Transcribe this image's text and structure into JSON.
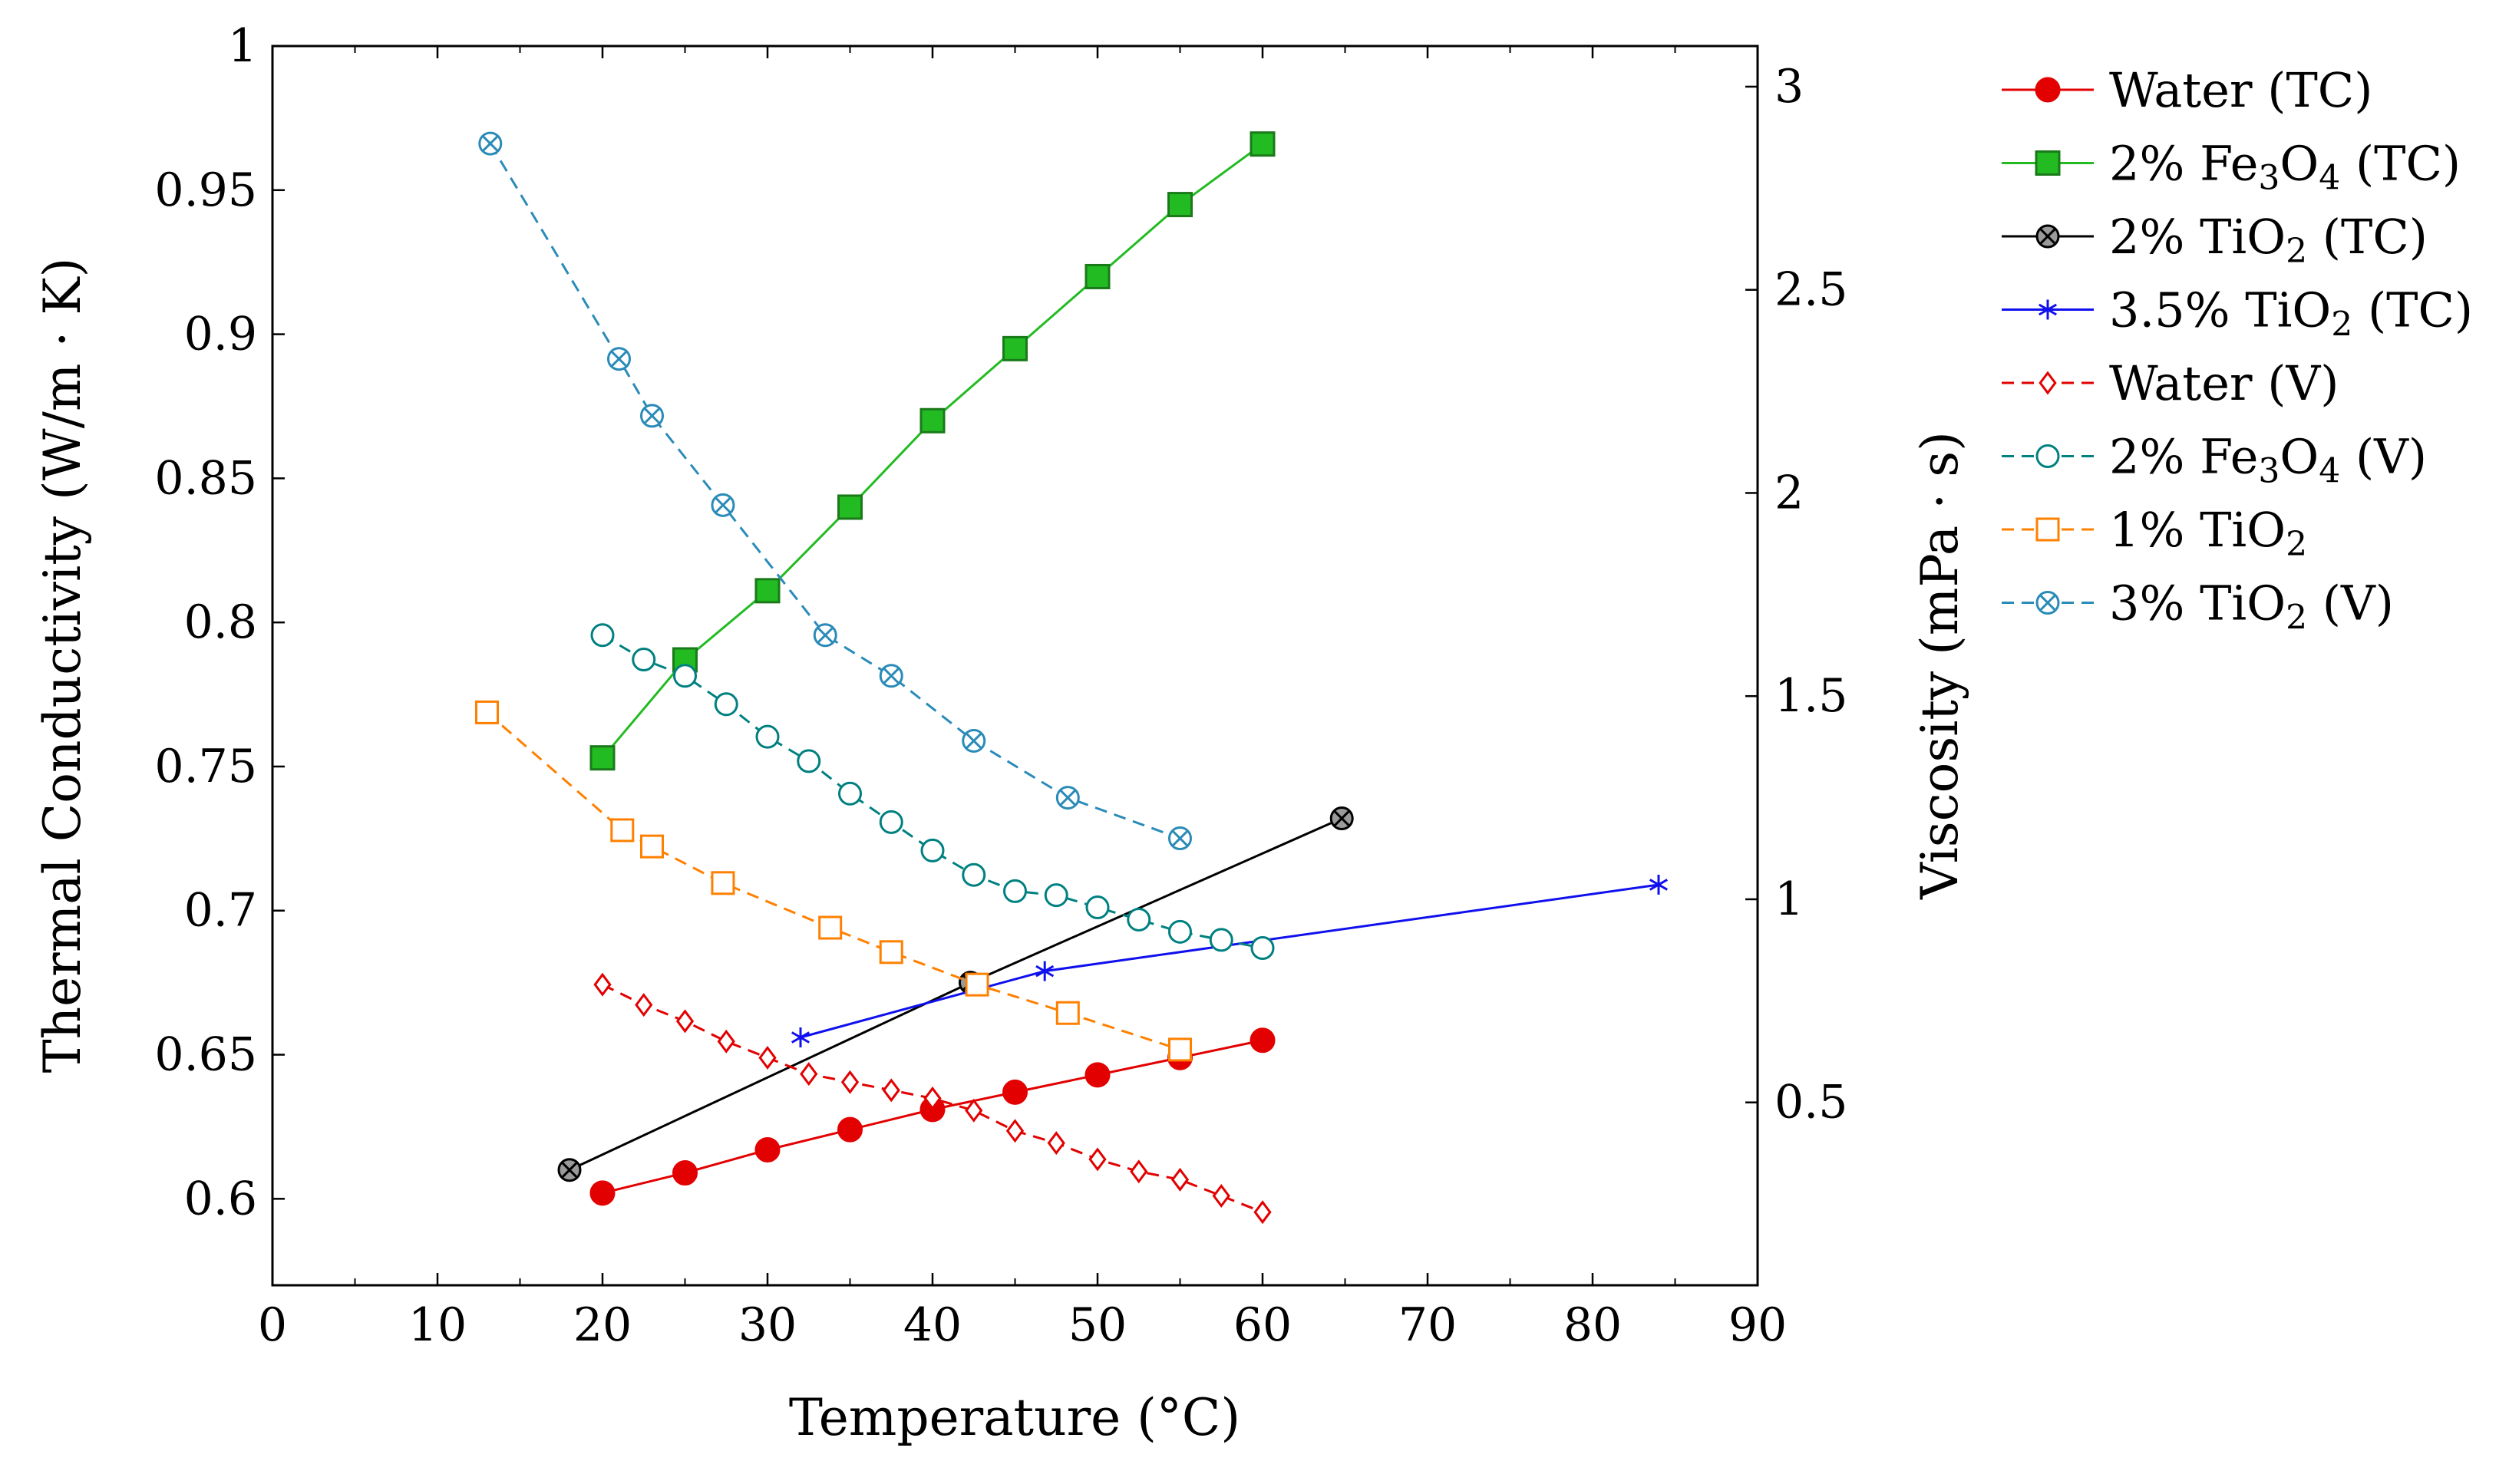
{
  "chart_data": {
    "type": "line",
    "xlabel": "Temperature (°C)",
    "ylabel_left": "Thermal Conductivity (W/m · K)",
    "ylabel_right": "Viscosity (mPa · s)",
    "xlim": [
      0,
      90
    ],
    "ylim_left": [
      0.57,
      1.0
    ],
    "ylim_right": [
      0.05,
      3.1
    ],
    "x_ticks": [
      "0",
      "10",
      "20",
      "30",
      "40",
      "50",
      "60",
      "70",
      "80",
      "90"
    ],
    "y_ticks_left": [
      "0.6",
      "0.65",
      "0.7",
      "0.75",
      "0.8",
      "0.85",
      "0.9",
      "0.95",
      "1"
    ],
    "y_ticks_right": [
      "0.5",
      "1",
      "1.5",
      "2",
      "2.5",
      "3"
    ],
    "legend_position": "right",
    "series": [
      {
        "name": "Water (TC)",
        "axis": "left",
        "color": "#e30000",
        "line": "solid",
        "marker": "filled-circle",
        "x": [
          20,
          25,
          30,
          35,
          40,
          45,
          50,
          55,
          60
        ],
        "y": [
          0.602,
          0.609,
          0.617,
          0.624,
          0.631,
          0.637,
          0.643,
          0.649,
          0.655
        ]
      },
      {
        "name": "2% Fe3O4 (TC)",
        "axis": "left",
        "color": "#22bb22",
        "line": "solid",
        "marker": "filled-square",
        "x": [
          20,
          25,
          30,
          35,
          40,
          45,
          50,
          55,
          60
        ],
        "y": [
          0.753,
          0.787,
          0.811,
          0.84,
          0.87,
          0.895,
          0.92,
          0.945,
          0.966
        ]
      },
      {
        "name": "2% TiO2 (TC)",
        "axis": "left",
        "color": "#000000",
        "line": "solid",
        "marker": "otimes-gray",
        "x": [
          18,
          42.3,
          64.8
        ],
        "y": [
          0.61,
          0.675,
          0.732
        ]
      },
      {
        "name": "3.5% TiO2 (TC)",
        "axis": "left",
        "color": "#1010ee",
        "line": "solid",
        "marker": "star",
        "x": [
          32,
          46.8,
          84
        ],
        "y": [
          0.656,
          0.679,
          0.709
        ]
      },
      {
        "name": "Water (V)",
        "axis": "right",
        "color": "#e30000",
        "line": "dashed",
        "marker": "open-diamond",
        "x": [
          20,
          22.5,
          25,
          27.5,
          30,
          32.5,
          35,
          37.5,
          40,
          42.5,
          45,
          47.5,
          50,
          52.5,
          55,
          57.5,
          60
        ],
        "y": [
          0.79,
          0.74,
          0.7,
          0.65,
          0.61,
          0.57,
          0.55,
          0.53,
          0.51,
          0.48,
          0.43,
          0.4,
          0.36,
          0.33,
          0.31,
          0.27,
          0.23
        ]
      },
      {
        "name": "2% Fe3O4 (V)",
        "axis": "right",
        "color": "#008080",
        "line": "dashed",
        "marker": "open-circle",
        "x": [
          20,
          22.5,
          25,
          27.5,
          30,
          32.5,
          35,
          37.5,
          40,
          42.5,
          45,
          47.5,
          50,
          52.5,
          55,
          57.5,
          60
        ],
        "y": [
          1.65,
          1.59,
          1.55,
          1.48,
          1.4,
          1.34,
          1.26,
          1.19,
          1.12,
          1.06,
          1.02,
          1.01,
          0.98,
          0.95,
          0.92,
          0.9,
          0.88
        ]
      },
      {
        "name": "1% TiO2",
        "axis": "right",
        "color": "#ff8000",
        "line": "dashed",
        "marker": "open-square",
        "x": [
          13,
          21.2,
          23,
          27.3,
          33.8,
          37.5,
          42.7,
          48.2,
          55
        ],
        "y": [
          1.46,
          1.17,
          1.13,
          1.04,
          0.93,
          0.87,
          0.79,
          0.72,
          0.63
        ]
      },
      {
        "name": "3% TiO2 (V)",
        "axis": "right",
        "color": "#2a8bb8",
        "line": "dashed",
        "marker": "otimes-open",
        "x": [
          13.2,
          21,
          23,
          27.3,
          33.5,
          37.5,
          42.5,
          48.2,
          55
        ],
        "y": [
          2.86,
          2.33,
          2.19,
          1.97,
          1.65,
          1.55,
          1.39,
          1.25,
          1.15
        ]
      }
    ]
  },
  "legend_labels": [
    {
      "base": "Water (TC)",
      "sub": "",
      "tail": ""
    },
    {
      "base": "2% Fe",
      "sub": "3",
      "tail": "O",
      "sub2": "4",
      "tail2": " (TC)"
    },
    {
      "base": "2% TiO",
      "sub": "2",
      "tail": " (TC)"
    },
    {
      "base": "3.5% TiO",
      "sub": "2",
      "tail": " (TC)"
    },
    {
      "base": "Water (V)",
      "sub": "",
      "tail": ""
    },
    {
      "base": "2% Fe",
      "sub": "3",
      "tail": "O",
      "sub2": "4",
      "tail2": " (V)"
    },
    {
      "base": "1% TiO",
      "sub": "2",
      "tail": ""
    },
    {
      "base": "3% TiO",
      "sub": "2",
      "tail": " (V)"
    }
  ]
}
